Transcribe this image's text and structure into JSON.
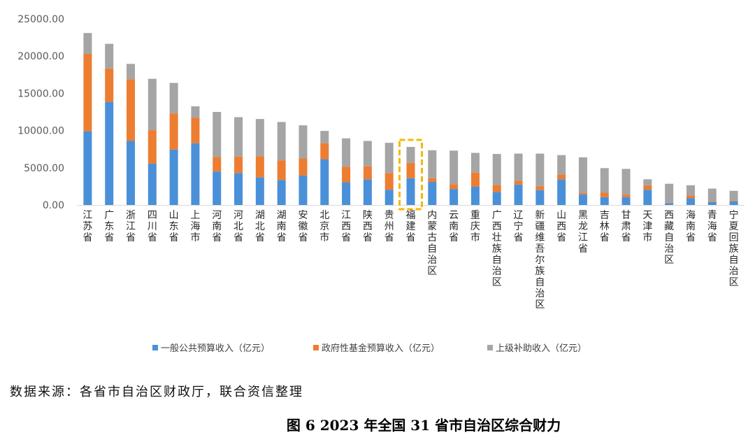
{
  "chart_data": {
    "type": "bar",
    "stacked": true,
    "categories": [
      "江苏省",
      "广东省",
      "浙江省",
      "四川省",
      "山东省",
      "上海市",
      "河南省",
      "河北省",
      "湖北省",
      "湖南省",
      "安徽省",
      "北京市",
      "江西省",
      "陕西省",
      "贵州省",
      "福建省",
      "内蒙古自治区",
      "云南省",
      "重庆市",
      "广西壮族自治区",
      "辽宁省",
      "新疆维吾尔族自治区",
      "山西省",
      "黑龙江省",
      "吉林省",
      "甘肃省",
      "天津市",
      "西藏自治区",
      "海南省",
      "青海省",
      "宁夏回族自治区"
    ],
    "series": [
      {
        "name": "一般公共预算收入（亿元）",
        "color": "#4A90D9",
        "values": [
          9900,
          13850,
          8600,
          5550,
          7450,
          8300,
          4500,
          4300,
          3700,
          3350,
          3950,
          6150,
          3050,
          3450,
          2050,
          3600,
          3100,
          2150,
          2450,
          1750,
          2750,
          2000,
          3450,
          1400,
          1050,
          1050,
          2050,
          250,
          900,
          380,
          500
        ]
      },
      {
        "name": "政府性基金预算收入（亿元）",
        "color": "#ED7D31",
        "values": [
          10400,
          4500,
          8300,
          4500,
          4850,
          3400,
          1950,
          2200,
          2850,
          2650,
          2300,
          2150,
          2100,
          1750,
          2250,
          2050,
          500,
          650,
          1900,
          950,
          500,
          500,
          650,
          200,
          600,
          350,
          600,
          50,
          400,
          80,
          100
        ]
      },
      {
        "name": "上级补助收入（亿元）",
        "color": "#A5A5A5",
        "values": [
          2800,
          3300,
          2050,
          6900,
          4100,
          1550,
          6050,
          5300,
          5000,
          5150,
          4450,
          1650,
          3800,
          3400,
          4050,
          2150,
          3750,
          4500,
          2650,
          4150,
          3650,
          4400,
          2600,
          4800,
          3300,
          3450,
          800,
          2550,
          1350,
          1740,
          1300
        ]
      }
    ],
    "ylim": [
      0,
      25000
    ],
    "yticks": [
      "0.00",
      "5000.00",
      "10000.00",
      "15000.00",
      "20000.00",
      "25000.00"
    ],
    "grid": false,
    "legend_position": "bottom",
    "highlight_category": "福建省",
    "highlight_color": "#F5B800",
    "source_note": "数据来源：各省市自治区财政厅，联合资信整理",
    "caption": "图 6   2023 年全国 31 省市自治区综合财力"
  }
}
